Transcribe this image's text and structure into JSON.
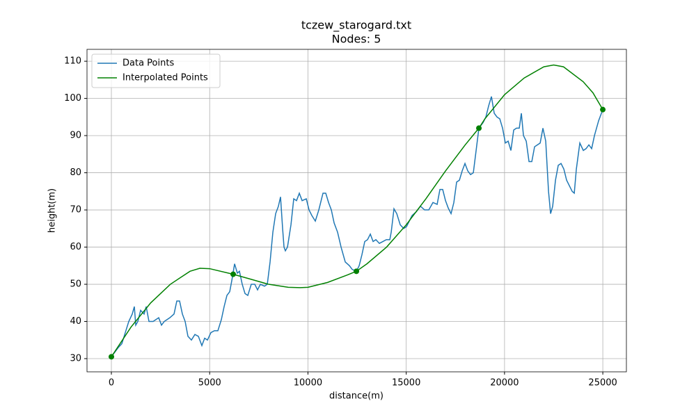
{
  "chart_data": {
    "type": "line",
    "title": "tczew_starogard.txt",
    "subtitle": "Nodes: 5",
    "xlabel": "distance(m)",
    "ylabel": "height(m)",
    "xlim": [
      -1240,
      26200
    ],
    "ylim": [
      26.45,
      113.2
    ],
    "xticks": [
      0,
      5000,
      10000,
      15000,
      20000,
      25000
    ],
    "yticks": [
      30,
      40,
      50,
      60,
      70,
      80,
      90,
      100,
      110
    ],
    "grid": true,
    "legend": "upper left",
    "series": [
      {
        "name": "Data Points",
        "color": "#1f77b4",
        "x": [
          0,
          354,
          531,
          708,
          885,
          1062,
          1169,
          1239,
          1346,
          1487,
          1664,
          1771,
          1912,
          2125,
          2408,
          2550,
          2691,
          2974,
          3187,
          3329,
          3470,
          3612,
          3753,
          3895,
          4072,
          4249,
          4426,
          4603,
          4745,
          4887,
          5064,
          5241,
          5418,
          5595,
          5736,
          5878,
          6020,
          6126,
          6268,
          6409,
          6515,
          6657,
          6799,
          6940,
          7117,
          7294,
          7436,
          7578,
          7790,
          7932,
          8073,
          8215,
          8357,
          8498,
          8605,
          8711,
          8782,
          8852,
          8959,
          9136,
          9277,
          9419,
          9561,
          9702,
          9915,
          10056,
          10198,
          10375,
          10552,
          10765,
          10906,
          11048,
          11190,
          11331,
          11508,
          11685,
          11898,
          12110,
          12252,
          12464,
          12606,
          12748,
          12889,
          13031,
          13173,
          13314,
          13456,
          13633,
          13810,
          13987,
          14164,
          14235,
          14376,
          14518,
          14695,
          14872,
          15014,
          15155,
          15297,
          15510,
          15722,
          15935,
          16147,
          16359,
          16572,
          16714,
          16855,
          16997,
          17138,
          17280,
          17422,
          17563,
          17705,
          17846,
          17988,
          18130,
          18272,
          18413,
          18555,
          18696,
          18909,
          19051,
          19192,
          19334,
          19476,
          19617,
          19759,
          19900,
          20042,
          20184,
          20325,
          20467,
          20609,
          20750,
          20856,
          20963,
          21105,
          21246,
          21388,
          21529,
          21671,
          21813,
          21954,
          22096,
          22238,
          22344,
          22450,
          22592,
          22733,
          22875,
          23017,
          23158,
          23300,
          23441,
          23548,
          23654,
          23831,
          24008,
          24150,
          24291,
          24433,
          24575,
          24787,
          24999
        ],
        "values": [
          30.5,
          33,
          34,
          37,
          40,
          42,
          44,
          39,
          40,
          43,
          42,
          44,
          40,
          40,
          41,
          39,
          40,
          41,
          42,
          45.5,
          45.5,
          42,
          40,
          36,
          35,
          36.5,
          36,
          33.5,
          35.5,
          35,
          37,
          37.5,
          37.5,
          40.5,
          44,
          47,
          48,
          51,
          55.5,
          53,
          53.5,
          50,
          47.5,
          47,
          50,
          50,
          48.5,
          50,
          49.5,
          50,
          56,
          64,
          69,
          71,
          73.5,
          65,
          60,
          59,
          60,
          66,
          73,
          72.5,
          74.5,
          72.5,
          73,
          70,
          68.5,
          67,
          70,
          74.5,
          74.5,
          72,
          70,
          66.5,
          64,
          60,
          56,
          55,
          54,
          53.5,
          55,
          58,
          61.5,
          62,
          63.5,
          61.5,
          62,
          61,
          61.5,
          62,
          62,
          64,
          70.3,
          69,
          66,
          65,
          65.5,
          67,
          68.5,
          69.5,
          71,
          70,
          70,
          72,
          71.5,
          75.5,
          75.5,
          72.5,
          70.5,
          69,
          72,
          77.5,
          78,
          80.5,
          82.5,
          80.5,
          79.5,
          80,
          86,
          92,
          93.5,
          95,
          98,
          100.5,
          96,
          95,
          94.5,
          92,
          88,
          88.5,
          86,
          91.5,
          92,
          92,
          96,
          90,
          88.5,
          83,
          83,
          87,
          87.5,
          88,
          92,
          88.5,
          75,
          69,
          71,
          78,
          82,
          82.5,
          81,
          78,
          76.5,
          75,
          74.5,
          81,
          88,
          86,
          86.5,
          87.5,
          86.5,
          90,
          94,
          97
        ]
      },
      {
        "name": "Interpolated Points",
        "color": "green",
        "x": [
          0,
          1000,
          2000,
          3000,
          4000,
          4500,
          5000,
          6197,
          7000,
          8000,
          9000,
          9600,
          10000,
          11000,
          12000,
          12464,
          13000,
          14000,
          15000,
          16000,
          17000,
          18000,
          18696,
          19000,
          20000,
          21000,
          22000,
          22500,
          23000,
          24000,
          24500,
          24999
        ],
        "values": [
          30.5,
          38.5,
          45,
          50,
          53.5,
          54.3,
          54.2,
          52.7,
          51.5,
          50,
          49.2,
          49.1,
          49.2,
          50.5,
          52.5,
          53.5,
          55.5,
          60,
          66,
          73,
          80.5,
          87.5,
          92,
          94.5,
          101,
          105.5,
          108.5,
          109,
          108.5,
          104.5,
          101.5,
          97
        ]
      }
    ],
    "nodes": {
      "color": "green",
      "x": [
        0,
        6197,
        12464,
        18696,
        24999
      ],
      "values": [
        30.5,
        52.7,
        53.5,
        92,
        97
      ]
    }
  }
}
